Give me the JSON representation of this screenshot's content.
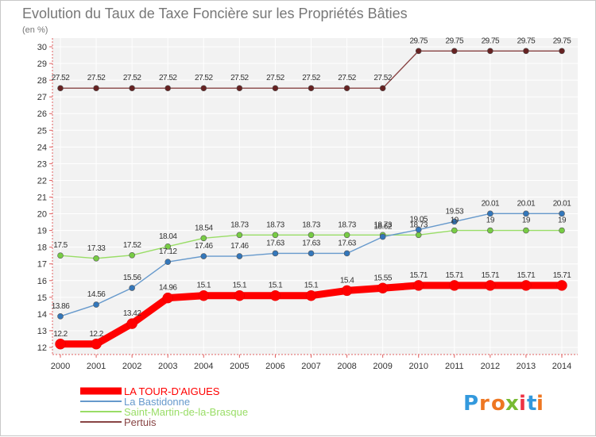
{
  "chart_data": {
    "type": "line",
    "title": "Evolution du Taux de Taxe Foncière sur les Propriétés Bâties",
    "subtitle": "(en %)",
    "xlabel": "",
    "ylabel": "",
    "categories": [
      "2000",
      "2001",
      "2002",
      "2003",
      "2004",
      "2005",
      "2006",
      "2007",
      "2008",
      "2009",
      "2010",
      "2011",
      "2012",
      "2013",
      "2014"
    ],
    "ylim": [
      12,
      30
    ],
    "yticks": [
      12,
      13,
      14,
      15,
      16,
      17,
      18,
      19,
      20,
      21,
      22,
      23,
      24,
      25,
      26,
      27,
      28,
      29,
      30
    ],
    "grid": true,
    "legend_position": "bottom-left",
    "series": [
      {
        "name": "LA TOUR-D'AIGUES",
        "color": "#ff0000",
        "values": [
          12.2,
          12.2,
          13.42,
          14.96,
          15.1,
          15.1,
          15.1,
          15.1,
          15.4,
          15.55,
          15.71,
          15.71,
          15.71,
          15.71,
          15.71
        ],
        "labels": [
          "12.2",
          "12.2",
          "13.42",
          "14.96",
          "15.1",
          "15.1",
          "15.1",
          "15.1",
          "15.4",
          "15.55",
          "15.71",
          "15.71",
          "15.71",
          "15.71",
          "15.71"
        ]
      },
      {
        "name": "La Bastidonne",
        "color": "#6699cc",
        "marker_color": "#3377bb",
        "values": [
          13.86,
          14.56,
          15.56,
          17.12,
          17.46,
          17.46,
          17.63,
          17.63,
          17.63,
          18.62,
          19.05,
          19.53,
          20.01,
          20.01,
          20.01
        ],
        "labels": [
          "13.86",
          "14.56",
          "15.56",
          "17.12",
          "17.46",
          "17.46",
          "17.63",
          "17.63",
          "17.63",
          "18.62",
          "19.05",
          "19.53",
          "20.01",
          "20.01",
          "20.01"
        ]
      },
      {
        "name": "Saint-Martin-de-la-Brasque",
        "color": "#99dd66",
        "marker_color": "#77cc44",
        "values": [
          17.5,
          17.33,
          17.52,
          18.04,
          18.54,
          18.73,
          18.73,
          18.73,
          18.73,
          18.73,
          18.73,
          19,
          19,
          19,
          19
        ],
        "labels": [
          "17.5",
          "17.33",
          "17.52",
          "18.04",
          "18.54",
          "18.73",
          "18.73",
          "18.73",
          "18.73",
          "18.73",
          "18.73",
          "19",
          "19",
          "19",
          "19"
        ]
      },
      {
        "name": "Pertuis",
        "color": "#884444",
        "marker_color": "#662222",
        "values": [
          27.52,
          27.52,
          27.52,
          27.52,
          27.52,
          27.52,
          27.52,
          27.52,
          27.52,
          27.52,
          29.75,
          29.75,
          29.75,
          29.75,
          29.75
        ],
        "labels": [
          "27.52",
          "27.52",
          "27.52",
          "27.52",
          "27.52",
          "27.52",
          "27.52",
          "27.52",
          "27.52",
          "27.52",
          "29.75",
          "29.75",
          "29.75",
          "29.75",
          "29.75"
        ]
      }
    ]
  },
  "logo": {
    "letters": [
      "P",
      "r",
      "o",
      "x",
      "i",
      "t",
      "i"
    ],
    "colors": [
      "#3399dd",
      "#ee7722",
      "#ee7722",
      "#77bb33",
      "#ee3344",
      "#3399dd",
      "#ee7722"
    ]
  }
}
